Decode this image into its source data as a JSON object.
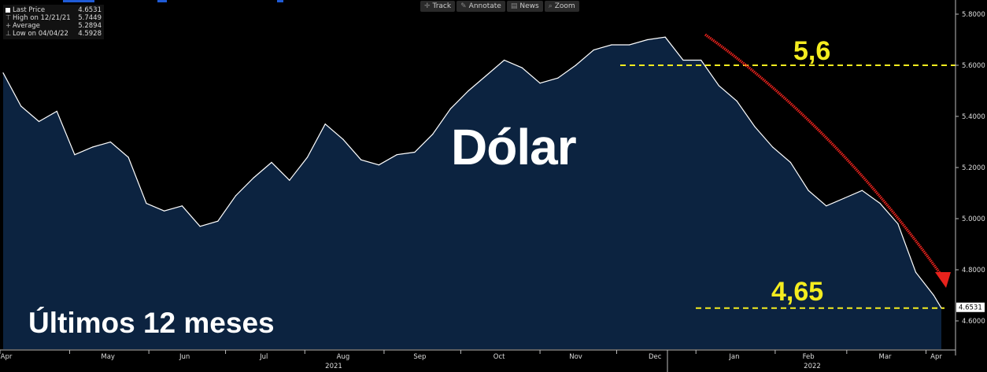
{
  "legend": {
    "last_price_label": "Last Price",
    "last_price": "4.6531",
    "high_label": "High on 12/21/21",
    "high_value": "5.7449",
    "average_label": "Average",
    "average_value": "5.2894",
    "low_label": "Low on 04/04/22",
    "low_value": "4.5928"
  },
  "toolbar": {
    "track": "Track",
    "annotate": "Annotate",
    "news": "News",
    "zoom": "Zoom"
  },
  "title": "Dólar",
  "subtitle": "Últimos 12 meses",
  "annotations": {
    "upper": "5,6",
    "lower": "4,65"
  },
  "last_price_tag": "4.6531",
  "colors": {
    "background": "#000000",
    "area_fill": "#0c2340",
    "line": "#ffffff",
    "dashed": "#f4ec1f",
    "arrow": "#e8221c",
    "accent": "#1f5bd6"
  },
  "chart_data": {
    "type": "area",
    "y_ticks": [
      "5.8000",
      "5.6000",
      "5.4000",
      "5.2000",
      "5.0000",
      "4.8000",
      "4.6000"
    ],
    "ylim": [
      4.55,
      5.85
    ],
    "x_month_labels": [
      "Apr",
      "May",
      "Jun",
      "Jul",
      "Aug",
      "Sep",
      "Oct",
      "Nov",
      "Dec",
      "Jan",
      "Feb",
      "Mar",
      "Apr"
    ],
    "x_year_labels": [
      "2021",
      "2022"
    ],
    "grid": false,
    "reference_levels": [
      5.6,
      4.65
    ],
    "series": [
      {
        "x": [
          "2021-04-05",
          "2021-04-12",
          "2021-04-19",
          "2021-04-26",
          "2021-05-03",
          "2021-05-10",
          "2021-05-17",
          "2021-05-24",
          "2021-05-31",
          "2021-06-07",
          "2021-06-14",
          "2021-06-21",
          "2021-06-28",
          "2021-07-05",
          "2021-07-12",
          "2021-07-19",
          "2021-07-26",
          "2021-08-02",
          "2021-08-09",
          "2021-08-16",
          "2021-08-23",
          "2021-08-30",
          "2021-09-06",
          "2021-09-13",
          "2021-09-20",
          "2021-09-27",
          "2021-10-04",
          "2021-10-11",
          "2021-10-18",
          "2021-10-25",
          "2021-11-01",
          "2021-11-08",
          "2021-11-15",
          "2021-11-22",
          "2021-11-29",
          "2021-12-06",
          "2021-12-13",
          "2021-12-20",
          "2021-12-27",
          "2022-01-03",
          "2022-01-10",
          "2022-01-17",
          "2022-01-24",
          "2022-01-31",
          "2022-02-07",
          "2022-02-14",
          "2022-02-21",
          "2022-02-28",
          "2022-03-07",
          "2022-03-14",
          "2022-03-21",
          "2022-03-28",
          "2022-04-04",
          "2022-04-07"
        ],
        "values": [
          5.57,
          5.44,
          5.38,
          5.42,
          5.25,
          5.28,
          5.3,
          5.24,
          5.06,
          5.03,
          5.05,
          4.97,
          4.99,
          5.09,
          5.16,
          5.22,
          5.15,
          5.24,
          5.37,
          5.31,
          5.23,
          5.21,
          5.25,
          5.26,
          5.33,
          5.43,
          5.5,
          5.56,
          5.62,
          5.59,
          5.53,
          5.55,
          5.6,
          5.66,
          5.68,
          5.68,
          5.7,
          5.71,
          5.62,
          5.62,
          5.52,
          5.46,
          5.36,
          5.28,
          5.22,
          5.11,
          5.05,
          5.08,
          5.11,
          5.06,
          4.98,
          4.79,
          4.7,
          4.65
        ]
      }
    ]
  }
}
